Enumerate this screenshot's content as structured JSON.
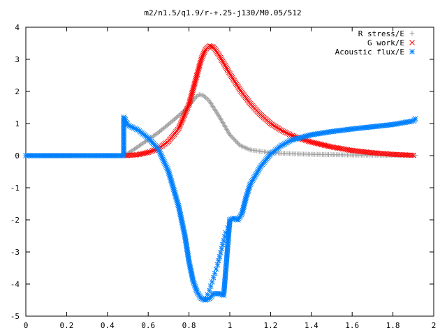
{
  "chart_data": {
    "type": "scatter",
    "title": "m2/n1.5/q1.9/r-+.25-j130/M0.05/512",
    "xlabel": "",
    "ylabel": "",
    "xlim": [
      0,
      2
    ],
    "ylim": [
      -5,
      4
    ],
    "xticks": [
      "0",
      "0.2",
      "0.4",
      "0.6",
      "0.8",
      "1",
      "1.2",
      "1.4",
      "1.6",
      "1.8",
      "2"
    ],
    "yticks": [
      "4",
      "3",
      "2",
      "1",
      "0",
      "-1",
      "-2",
      "-3",
      "-4",
      "-5"
    ],
    "grid": false,
    "legend": "top-right",
    "series": [
      {
        "name": "R stress/E",
        "marker": "+",
        "color": "#a0a0a0",
        "points": [
          [
            0,
            0
          ],
          [
            0.48,
            0
          ],
          [
            0.49,
            0.03
          ],
          [
            0.52,
            0.15
          ],
          [
            0.55,
            0.28
          ],
          [
            0.6,
            0.5
          ],
          [
            0.65,
            0.72
          ],
          [
            0.7,
            0.98
          ],
          [
            0.75,
            1.25
          ],
          [
            0.8,
            1.55
          ],
          [
            0.83,
            1.8
          ],
          [
            0.85,
            1.9
          ],
          [
            0.87,
            1.88
          ],
          [
            0.9,
            1.7
          ],
          [
            0.95,
            1.2
          ],
          [
            1.0,
            0.65
          ],
          [
            1.05,
            0.32
          ],
          [
            1.1,
            0.18
          ],
          [
            1.2,
            0.09
          ],
          [
            1.3,
            0.06
          ],
          [
            1.4,
            0.04
          ],
          [
            1.5,
            0.03
          ],
          [
            1.6,
            0.02
          ],
          [
            1.7,
            0.015
          ],
          [
            1.8,
            0.01
          ],
          [
            1.91,
            0.01
          ]
        ]
      },
      {
        "name": "G work/E",
        "marker": "x",
        "color": "#ff0000",
        "points": [
          [
            0.49,
            0
          ],
          [
            0.55,
            0.03
          ],
          [
            0.6,
            0.1
          ],
          [
            0.65,
            0.22
          ],
          [
            0.7,
            0.45
          ],
          [
            0.75,
            0.85
          ],
          [
            0.8,
            1.6
          ],
          [
            0.83,
            2.3
          ],
          [
            0.86,
            3.0
          ],
          [
            0.88,
            3.3
          ],
          [
            0.9,
            3.42
          ],
          [
            0.92,
            3.38
          ],
          [
            0.95,
            3.1
          ],
          [
            1.0,
            2.55
          ],
          [
            1.05,
            2.05
          ],
          [
            1.1,
            1.62
          ],
          [
            1.15,
            1.28
          ],
          [
            1.2,
            1.0
          ],
          [
            1.25,
            0.8
          ],
          [
            1.3,
            0.64
          ],
          [
            1.35,
            0.52
          ],
          [
            1.4,
            0.42
          ],
          [
            1.5,
            0.27
          ],
          [
            1.6,
            0.16
          ],
          [
            1.7,
            0.09
          ],
          [
            1.8,
            0.04
          ],
          [
            1.9,
            0.01
          ]
        ]
      },
      {
        "name": "Acoustic flux/E",
        "marker": "*",
        "color": "#0080ff",
        "points": [
          [
            0,
            0
          ],
          [
            0.1,
            0
          ],
          [
            0.2,
            0
          ],
          [
            0.3,
            0
          ],
          [
            0.4,
            0
          ],
          [
            0.48,
            0
          ],
          [
            0.48,
            1.2
          ],
          [
            0.5,
            0.95
          ],
          [
            0.55,
            0.8
          ],
          [
            0.6,
            0.55
          ],
          [
            0.65,
            0.2
          ],
          [
            0.7,
            -0.5
          ],
          [
            0.75,
            -1.6
          ],
          [
            0.78,
            -2.5
          ],
          [
            0.8,
            -3.3
          ],
          [
            0.82,
            -3.9
          ],
          [
            0.84,
            -4.25
          ],
          [
            0.86,
            -4.45
          ],
          [
            0.88,
            -4.5
          ],
          [
            0.9,
            -4.45
          ],
          [
            0.92,
            -4.3
          ],
          [
            0.95,
            -4.3
          ],
          [
            0.97,
            -4.35
          ],
          [
            0.98,
            -3.6
          ],
          [
            0.99,
            -2.8
          ],
          [
            1.0,
            -2.0
          ],
          [
            1.02,
            -1.95
          ],
          [
            1.04,
            -2.0
          ],
          [
            1.06,
            -1.8
          ],
          [
            1.08,
            -1.3
          ],
          [
            1.1,
            -0.9
          ],
          [
            1.15,
            -0.35
          ],
          [
            1.2,
            0.05
          ],
          [
            1.25,
            0.3
          ],
          [
            1.3,
            0.48
          ],
          [
            1.4,
            0.65
          ],
          [
            1.5,
            0.75
          ],
          [
            1.6,
            0.83
          ],
          [
            1.7,
            0.9
          ],
          [
            1.8,
            0.97
          ],
          [
            1.9,
            1.08
          ],
          [
            1.91,
            1.15
          ]
        ]
      },
      {
        "name": "",
        "marker": "*",
        "color": "#0080ff",
        "points": [
          [
            0.88,
            -4.45
          ],
          [
            0.9,
            -4.2
          ],
          [
            0.92,
            -3.8
          ],
          [
            0.94,
            -3.4
          ],
          [
            0.96,
            -2.9
          ],
          [
            0.98,
            -2.4
          ],
          [
            1.0,
            -2.1
          ]
        ]
      }
    ]
  }
}
